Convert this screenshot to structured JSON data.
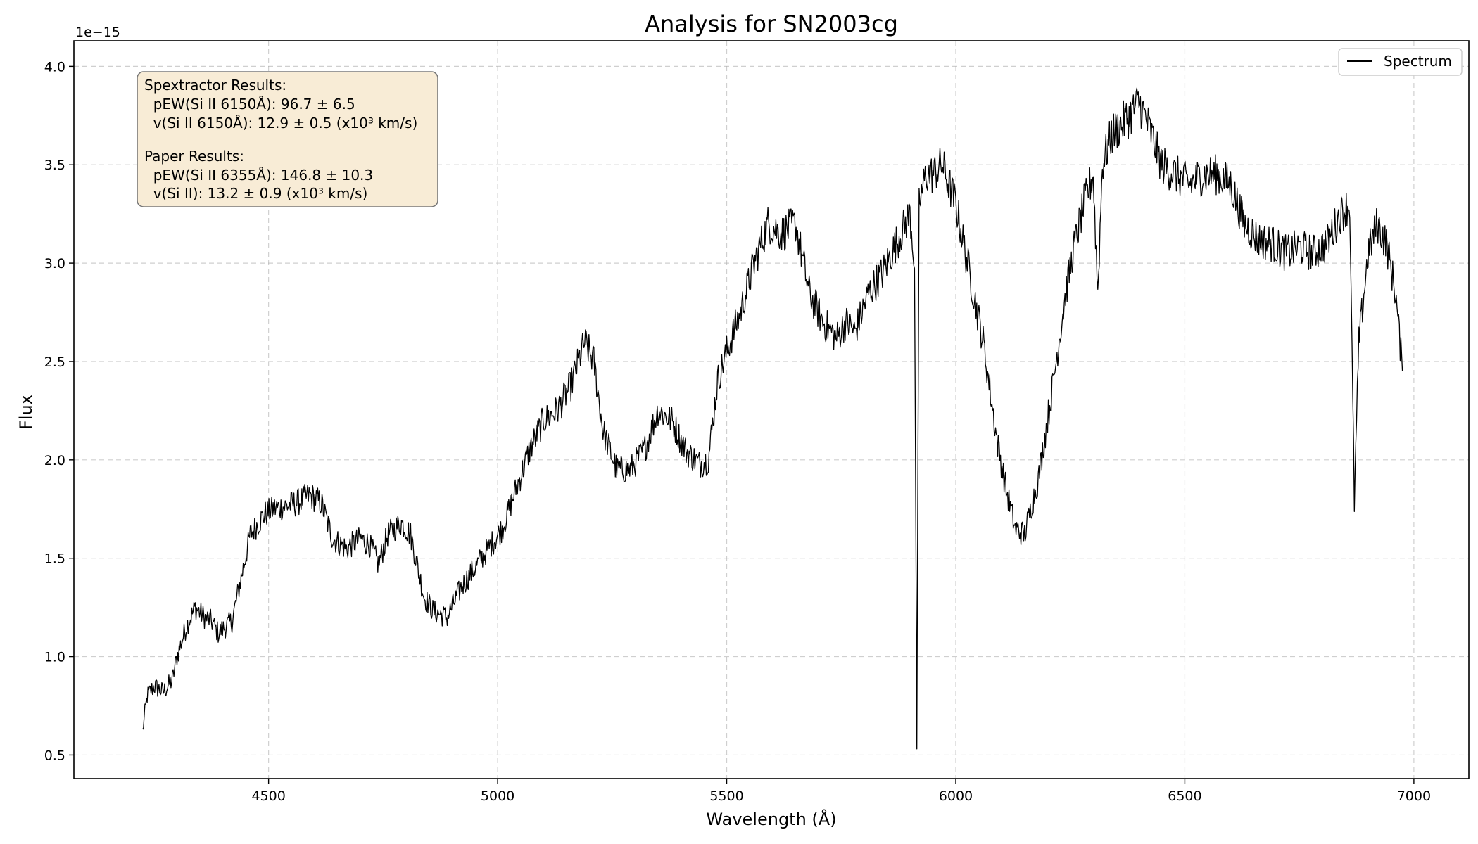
{
  "chart_data": {
    "type": "line",
    "title": "Analysis for SN2003cg",
    "xlabel": "Wavelength (Å)",
    "ylabel": "Flux",
    "y_offset_label": "1e−15",
    "xlim": [
      4075,
      7120
    ],
    "ylim": [
      0.38,
      4.13
    ],
    "x_ticks": [
      4500,
      5000,
      5500,
      6000,
      6500,
      7000
    ],
    "y_ticks": [
      0.5,
      1.0,
      1.5,
      2.0,
      2.5,
      3.0,
      3.5,
      4.0
    ],
    "x_tick_labels": [
      "4500",
      "5000",
      "5500",
      "6000",
      "6500",
      "7000"
    ],
    "y_tick_labels": [
      "0.5",
      "1.0",
      "1.5",
      "2.0",
      "2.5",
      "3.0",
      "3.5",
      "4.0"
    ],
    "grid": true,
    "legend_position": "top-right",
    "series": [
      {
        "name": "Spectrum",
        "color": "#000000",
        "x": [
          4225,
          4235,
          4250,
          4270,
          4290,
          4300,
          4320,
          4340,
          4360,
          4375,
          4390,
          4420,
          4440,
          4460,
          4490,
          4510,
          4530,
          4560,
          4590,
          4615,
          4640,
          4670,
          4700,
          4720,
          4740,
          4760,
          4790,
          4810,
          4840,
          4860,
          4890,
          4920,
          4950,
          4980,
          5010,
          5040,
          5070,
          5100,
          5130,
          5160,
          5190,
          5210,
          5230,
          5260,
          5290,
          5320,
          5350,
          5380,
          5410,
          5440,
          5460,
          5480,
          5500,
          5530,
          5560,
          5590,
          5620,
          5650,
          5680,
          5710,
          5740,
          5760,
          5780,
          5810,
          5840,
          5870,
          5900,
          5910,
          5915,
          5920,
          5935,
          5950,
          5970,
          6000,
          6030,
          6060,
          6090,
          6110,
          6130,
          6150,
          6180,
          6210,
          6240,
          6260,
          6280,
          6300,
          6310,
          6320,
          6340,
          6360,
          6380,
          6400,
          6420,
          6450,
          6480,
          6510,
          6540,
          6570,
          6600,
          6630,
          6660,
          6690,
          6720,
          6750,
          6780,
          6810,
          6840,
          6860,
          6870,
          6880,
          6900,
          6920,
          6940,
          6960,
          6975
        ],
        "y": [
          0.62,
          0.8,
          0.85,
          0.82,
          0.88,
          1.0,
          1.15,
          1.25,
          1.2,
          1.18,
          1.12,
          1.18,
          1.4,
          1.62,
          1.72,
          1.75,
          1.76,
          1.78,
          1.82,
          1.78,
          1.6,
          1.55,
          1.6,
          1.57,
          1.47,
          1.62,
          1.68,
          1.62,
          1.3,
          1.23,
          1.2,
          1.35,
          1.45,
          1.55,
          1.65,
          1.85,
          2.05,
          2.2,
          2.25,
          2.38,
          2.6,
          2.5,
          2.15,
          1.95,
          1.95,
          2.05,
          2.25,
          2.2,
          2.05,
          1.98,
          2.0,
          2.4,
          2.55,
          2.75,
          3.0,
          3.2,
          3.15,
          3.2,
          2.85,
          2.7,
          2.62,
          2.7,
          2.65,
          2.85,
          2.95,
          3.1,
          3.25,
          3.0,
          0.55,
          3.3,
          3.45,
          3.45,
          3.5,
          3.3,
          2.95,
          2.6,
          2.1,
          1.85,
          1.65,
          1.62,
          1.9,
          2.35,
          2.85,
          3.1,
          3.3,
          3.45,
          2.85,
          3.5,
          3.65,
          3.7,
          3.75,
          3.82,
          3.7,
          3.5,
          3.45,
          3.4,
          3.45,
          3.45,
          3.4,
          3.2,
          3.12,
          3.1,
          3.05,
          3.08,
          3.05,
          3.1,
          3.25,
          3.3,
          1.78,
          2.6,
          3.05,
          3.2,
          3.1,
          2.85,
          2.45
        ]
      }
    ]
  },
  "annotation": {
    "lines": [
      "Spextractor Results:",
      "  pEW(Si II 6150Å): 96.7 ± 6.5",
      "  v(Si II 6150Å): 12.9 ± 0.5 (x10³ km/s)",
      "",
      "Paper Results:",
      "  pEW(Si II 6355Å): 146.8 ± 10.3",
      "  v(Si II): 13.2 ± 0.9 (x10³ km/s)"
    ],
    "background": "#f8ecd6",
    "border": "#7a7a7a"
  }
}
